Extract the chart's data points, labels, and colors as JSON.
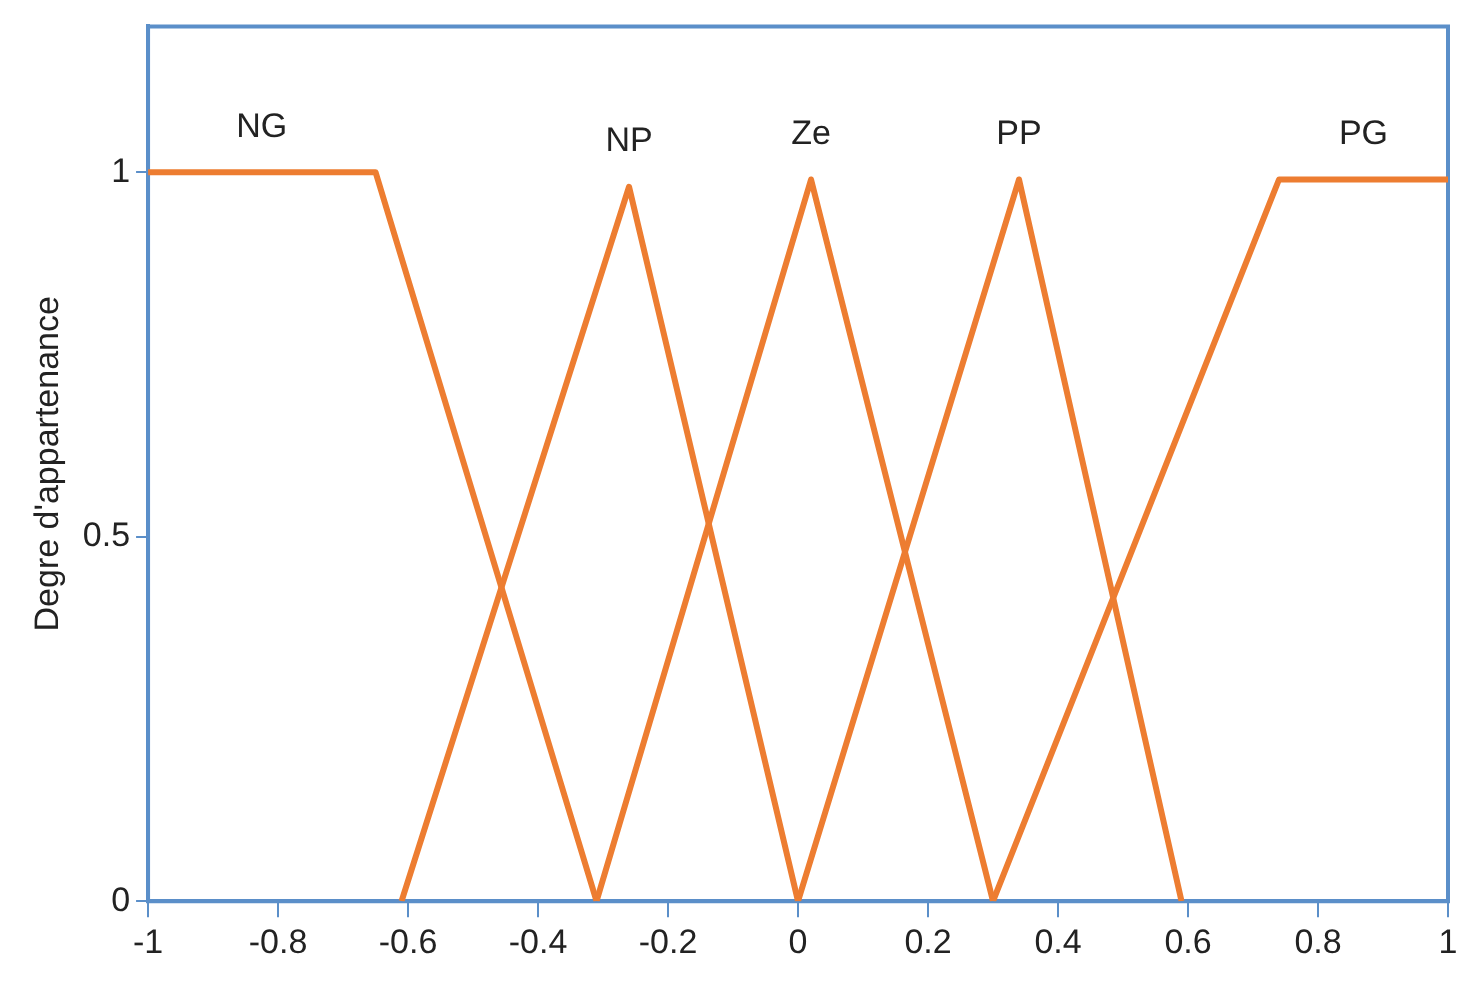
{
  "chart_data": {
    "type": "line",
    "ylabel": "Degre d'appartenance",
    "xlim": [
      -1,
      1
    ],
    "ylim": [
      0,
      1.2
    ],
    "xticks": [
      -1,
      -0.8,
      -0.6,
      -0.4,
      -0.2,
      0,
      0.2,
      0.4,
      0.6,
      0.8,
      1
    ],
    "yticks": [
      0,
      0.5,
      1
    ],
    "grid": false,
    "legend": false,
    "marker": "none",
    "line_style": "solid",
    "series": [
      {
        "name": "NG",
        "color": "#ed7d31",
        "x": [
          -1,
          -0.65,
          -0.31
        ],
        "values": [
          1,
          1,
          0
        ]
      },
      {
        "name": "NP",
        "color": "#ed7d31",
        "x": [
          -0.61,
          -0.26,
          0
        ],
        "values": [
          0,
          0.98,
          0
        ]
      },
      {
        "name": "Ze",
        "color": "#ed7d31",
        "x": [
          -0.31,
          0.02,
          0.3
        ],
        "values": [
          0,
          0.99,
          0
        ]
      },
      {
        "name": "PP",
        "color": "#ed7d31",
        "x": [
          0,
          0.34,
          0.59
        ],
        "values": [
          0,
          0.99,
          0
        ]
      },
      {
        "name": "PG",
        "color": "#ed7d31",
        "x": [
          0.3,
          0.74,
          1
        ],
        "values": [
          0,
          0.99,
          0.99
        ]
      }
    ]
  }
}
